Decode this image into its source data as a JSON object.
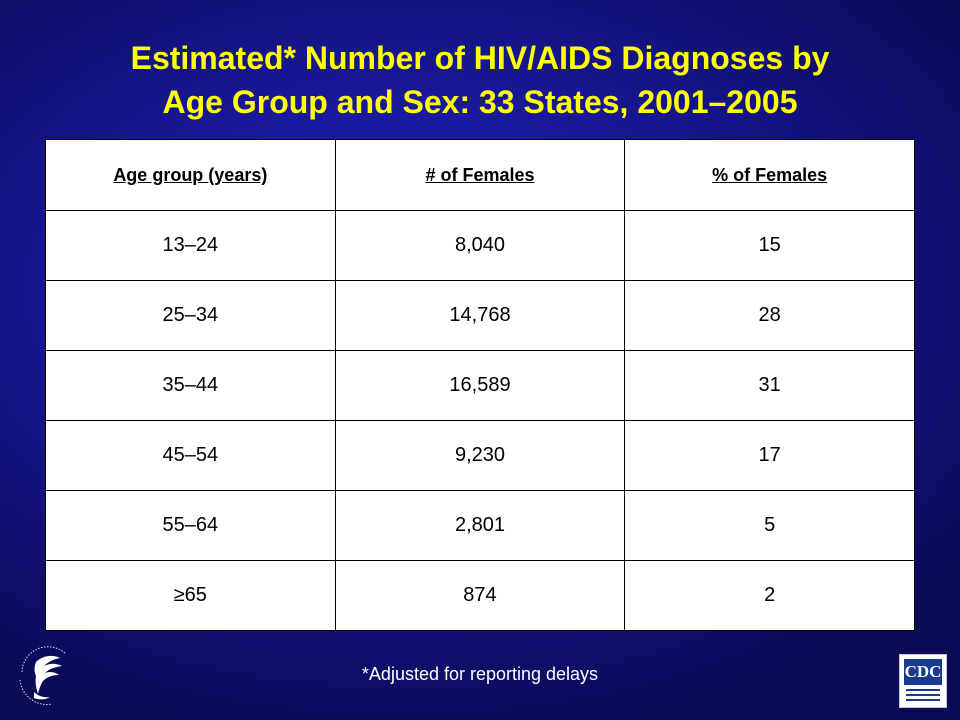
{
  "slide": {
    "title_line1": "Estimated* Number of HIV/AIDS Diagnoses by",
    "title_line2": "Age Group and Sex: 33 States, 2001–2005",
    "footnote": "*Adjusted for reporting delays"
  },
  "table": {
    "headers": [
      "Age group (years)",
      "# of Females",
      "% of Females"
    ],
    "rows": [
      [
        "13–24",
        "8,040",
        "15"
      ],
      [
        "25–34",
        "14,768",
        "28"
      ],
      [
        "35–44",
        "16,589",
        "31"
      ],
      [
        "45–54",
        "9,230",
        "17"
      ],
      [
        "55–64",
        "2,801",
        "5"
      ],
      [
        "≥65",
        "874",
        "2"
      ]
    ]
  },
  "logos": {
    "left": "hhs-eagle-seal-icon",
    "right_text": "CDC"
  },
  "colors": {
    "title": "#ffff00",
    "background": "#1a1aa0",
    "table_background": "#ffffff",
    "footnote": "#ffffff"
  }
}
